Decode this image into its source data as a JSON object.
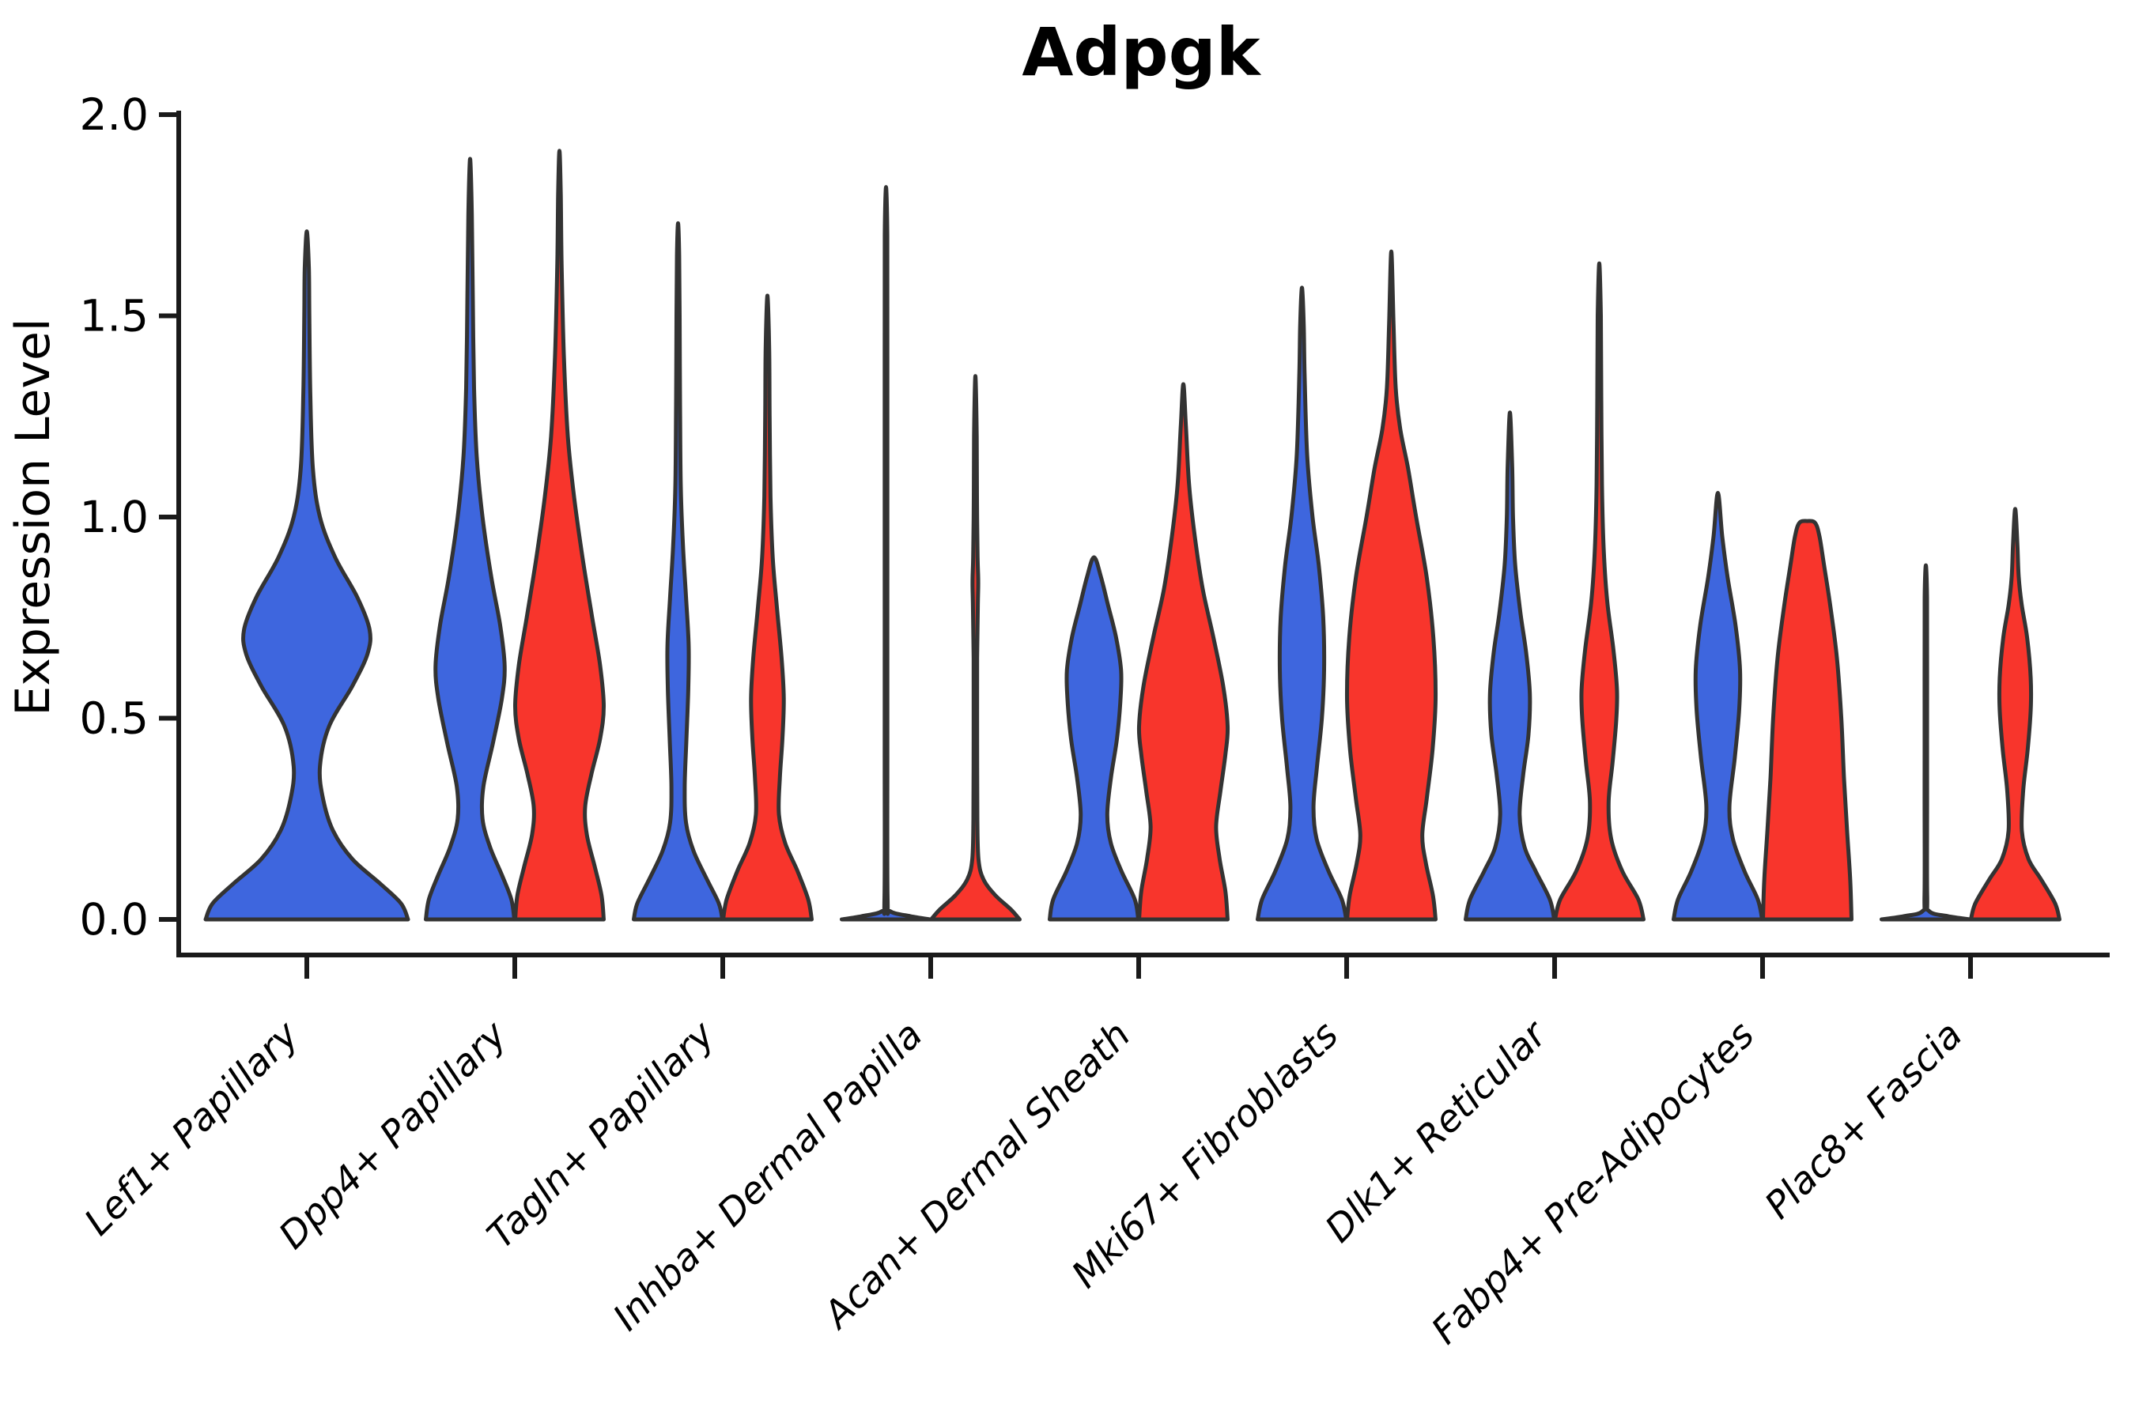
{
  "chart_data": {
    "type": "violin",
    "title": "Adpgk",
    "xlabel": "",
    "ylabel": "Expression Level",
    "ylim": [
      0.0,
      2.0
    ],
    "yticks": [
      0.0,
      0.5,
      1.0,
      1.5,
      2.0
    ],
    "ytick_labels": [
      "0.0",
      "0.5",
      "1.0",
      "1.5",
      "2.0"
    ],
    "grid": false,
    "legend_position": "none",
    "categories": [
      "Lef1+ Papillary",
      "Dpp4+ Papillary",
      "Tagln+ Papillary",
      "Inhba+ Dermal Papilla",
      "Acan+ Dermal Sheath",
      "Mki67+ Fibroblasts",
      "Dlk1+ Reticular",
      "Fabp4+ Pre-Adipocytes",
      "Plac8+ Fascia"
    ],
    "colors": {
      "blue": "#3E66DE",
      "red": "#F8352C",
      "outline": "#333333",
      "axis": "#1a1a1a",
      "text": "#000000",
      "background": "#ffffff"
    },
    "series": [
      {
        "name": "blue",
        "color": "#3E66DE",
        "max_expression": [
          1.71,
          1.89,
          1.73,
          1.82,
          0.9,
          1.57,
          1.26,
          1.06,
          0.88
        ]
      },
      {
        "name": "red",
        "color": "#F8352C",
        "max_expression": [
          null,
          1.91,
          1.55,
          1.35,
          1.33,
          1.66,
          1.63,
          0.99,
          1.02
        ]
      }
    ],
    "violins": [
      {
        "category_index": 0,
        "hue": "blue",
        "max": 1.71,
        "profile": [
          [
            0,
            1.0
          ],
          [
            0.04,
            0.93
          ],
          [
            0.09,
            0.72
          ],
          [
            0.15,
            0.45
          ],
          [
            0.22,
            0.26
          ],
          [
            0.3,
            0.16
          ],
          [
            0.38,
            0.13
          ],
          [
            0.48,
            0.22
          ],
          [
            0.58,
            0.45
          ],
          [
            0.66,
            0.6
          ],
          [
            0.72,
            0.62
          ],
          [
            0.8,
            0.5
          ],
          [
            0.9,
            0.28
          ],
          [
            1.0,
            0.13
          ],
          [
            1.12,
            0.06
          ],
          [
            1.3,
            0.035
          ],
          [
            1.5,
            0.025
          ],
          [
            1.62,
            0.02
          ],
          [
            1.71,
            0
          ]
        ]
      },
      {
        "category_index": 1,
        "hue": "blue",
        "max": 1.89,
        "profile": [
          [
            0,
            1.0
          ],
          [
            0.05,
            0.93
          ],
          [
            0.11,
            0.72
          ],
          [
            0.18,
            0.45
          ],
          [
            0.25,
            0.28
          ],
          [
            0.33,
            0.3
          ],
          [
            0.44,
            0.52
          ],
          [
            0.55,
            0.72
          ],
          [
            0.63,
            0.78
          ],
          [
            0.73,
            0.68
          ],
          [
            0.85,
            0.48
          ],
          [
            1.0,
            0.28
          ],
          [
            1.15,
            0.15
          ],
          [
            1.32,
            0.09
          ],
          [
            1.55,
            0.06
          ],
          [
            1.75,
            0.04
          ],
          [
            1.89,
            0
          ]
        ]
      },
      {
        "category_index": 1,
        "hue": "red",
        "max": 1.91,
        "profile": [
          [
            0,
            1.0
          ],
          [
            0.06,
            0.95
          ],
          [
            0.13,
            0.8
          ],
          [
            0.21,
            0.62
          ],
          [
            0.28,
            0.58
          ],
          [
            0.36,
            0.72
          ],
          [
            0.45,
            0.92
          ],
          [
            0.53,
            1.0
          ],
          [
            0.63,
            0.92
          ],
          [
            0.75,
            0.74
          ],
          [
            0.9,
            0.52
          ],
          [
            1.05,
            0.33
          ],
          [
            1.2,
            0.19
          ],
          [
            1.4,
            0.1
          ],
          [
            1.62,
            0.05
          ],
          [
            1.8,
            0.03
          ],
          [
            1.91,
            0
          ]
        ]
      },
      {
        "category_index": 2,
        "hue": "blue",
        "max": 1.73,
        "profile": [
          [
            0,
            1.0
          ],
          [
            0.04,
            0.92
          ],
          [
            0.1,
            0.65
          ],
          [
            0.17,
            0.35
          ],
          [
            0.24,
            0.18
          ],
          [
            0.33,
            0.15
          ],
          [
            0.45,
            0.19
          ],
          [
            0.57,
            0.23
          ],
          [
            0.68,
            0.24
          ],
          [
            0.8,
            0.18
          ],
          [
            0.93,
            0.11
          ],
          [
            1.08,
            0.06
          ],
          [
            1.28,
            0.045
          ],
          [
            1.5,
            0.035
          ],
          [
            1.65,
            0.025
          ],
          [
            1.73,
            0
          ]
        ]
      },
      {
        "category_index": 2,
        "hue": "red",
        "max": 1.55,
        "profile": [
          [
            0,
            1.0
          ],
          [
            0.05,
            0.92
          ],
          [
            0.12,
            0.68
          ],
          [
            0.19,
            0.4
          ],
          [
            0.26,
            0.26
          ],
          [
            0.35,
            0.28
          ],
          [
            0.45,
            0.34
          ],
          [
            0.55,
            0.37
          ],
          [
            0.65,
            0.32
          ],
          [
            0.78,
            0.21
          ],
          [
            0.9,
            0.12
          ],
          [
            1.05,
            0.07
          ],
          [
            1.25,
            0.05
          ],
          [
            1.42,
            0.04
          ],
          [
            1.55,
            0
          ]
        ]
      },
      {
        "category_index": 3,
        "hue": "blue",
        "max": 1.82,
        "profile": [
          [
            0,
            1.0
          ],
          [
            0.008,
            0.55
          ],
          [
            0.02,
            0.1
          ],
          [
            0.05,
            0.035
          ],
          [
            0.4,
            0.03
          ],
          [
            0.9,
            0.03
          ],
          [
            1.4,
            0.03
          ],
          [
            1.7,
            0.028
          ],
          [
            1.82,
            0
          ]
        ]
      },
      {
        "category_index": 3,
        "hue": "red",
        "max": 1.35,
        "profile": [
          [
            0,
            1.0
          ],
          [
            0.025,
            0.8
          ],
          [
            0.06,
            0.45
          ],
          [
            0.1,
            0.18
          ],
          [
            0.15,
            0.07
          ],
          [
            0.25,
            0.045
          ],
          [
            0.45,
            0.04
          ],
          [
            0.65,
            0.04
          ],
          [
            0.78,
            0.055
          ],
          [
            0.84,
            0.065
          ],
          [
            0.9,
            0.05
          ],
          [
            1.05,
            0.035
          ],
          [
            1.2,
            0.03
          ],
          [
            1.35,
            0
          ]
        ]
      },
      {
        "category_index": 4,
        "hue": "blue",
        "max": 0.9,
        "profile": [
          [
            0,
            1.0
          ],
          [
            0.05,
            0.92
          ],
          [
            0.12,
            0.62
          ],
          [
            0.19,
            0.38
          ],
          [
            0.26,
            0.3
          ],
          [
            0.35,
            0.38
          ],
          [
            0.45,
            0.52
          ],
          [
            0.55,
            0.6
          ],
          [
            0.62,
            0.61
          ],
          [
            0.7,
            0.5
          ],
          [
            0.78,
            0.32
          ],
          [
            0.85,
            0.16
          ],
          [
            0.9,
            0
          ]
        ]
      },
      {
        "category_index": 4,
        "hue": "red",
        "max": 1.33,
        "profile": [
          [
            0,
            1.0
          ],
          [
            0.07,
            0.95
          ],
          [
            0.15,
            0.82
          ],
          [
            0.23,
            0.74
          ],
          [
            0.32,
            0.84
          ],
          [
            0.41,
            0.95
          ],
          [
            0.48,
            1.0
          ],
          [
            0.58,
            0.9
          ],
          [
            0.7,
            0.68
          ],
          [
            0.82,
            0.44
          ],
          [
            0.95,
            0.26
          ],
          [
            1.08,
            0.13
          ],
          [
            1.22,
            0.06
          ],
          [
            1.33,
            0
          ]
        ]
      },
      {
        "category_index": 5,
        "hue": "blue",
        "max": 1.57,
        "profile": [
          [
            0,
            1.0
          ],
          [
            0.05,
            0.9
          ],
          [
            0.12,
            0.6
          ],
          [
            0.2,
            0.33
          ],
          [
            0.28,
            0.26
          ],
          [
            0.38,
            0.34
          ],
          [
            0.5,
            0.45
          ],
          [
            0.62,
            0.5
          ],
          [
            0.75,
            0.48
          ],
          [
            0.88,
            0.38
          ],
          [
            1.0,
            0.24
          ],
          [
            1.15,
            0.12
          ],
          [
            1.35,
            0.06
          ],
          [
            1.48,
            0.04
          ],
          [
            1.57,
            0
          ]
        ]
      },
      {
        "category_index": 5,
        "hue": "red",
        "max": 1.66,
        "profile": [
          [
            0,
            1.0
          ],
          [
            0.06,
            0.94
          ],
          [
            0.14,
            0.78
          ],
          [
            0.21,
            0.7
          ],
          [
            0.3,
            0.8
          ],
          [
            0.42,
            0.93
          ],
          [
            0.55,
            1.0
          ],
          [
            0.7,
            0.95
          ],
          [
            0.85,
            0.8
          ],
          [
            1.0,
            0.56
          ],
          [
            1.12,
            0.38
          ],
          [
            1.22,
            0.2
          ],
          [
            1.32,
            0.1
          ],
          [
            1.48,
            0.05
          ],
          [
            1.66,
            0
          ]
        ]
      },
      {
        "category_index": 6,
        "hue": "blue",
        "max": 1.26,
        "profile": [
          [
            0,
            1.0
          ],
          [
            0.05,
            0.9
          ],
          [
            0.12,
            0.58
          ],
          [
            0.18,
            0.33
          ],
          [
            0.26,
            0.22
          ],
          [
            0.36,
            0.3
          ],
          [
            0.46,
            0.42
          ],
          [
            0.56,
            0.45
          ],
          [
            0.66,
            0.37
          ],
          [
            0.76,
            0.24
          ],
          [
            0.88,
            0.12
          ],
          [
            1.0,
            0.07
          ],
          [
            1.13,
            0.05
          ],
          [
            1.26,
            0
          ]
        ]
      },
      {
        "category_index": 6,
        "hue": "red",
        "max": 1.63,
        "profile": [
          [
            0,
            1.0
          ],
          [
            0.05,
            0.88
          ],
          [
            0.12,
            0.52
          ],
          [
            0.2,
            0.27
          ],
          [
            0.29,
            0.21
          ],
          [
            0.39,
            0.3
          ],
          [
            0.49,
            0.38
          ],
          [
            0.57,
            0.4
          ],
          [
            0.67,
            0.32
          ],
          [
            0.79,
            0.18
          ],
          [
            0.92,
            0.1
          ],
          [
            1.08,
            0.06
          ],
          [
            1.3,
            0.045
          ],
          [
            1.5,
            0.035
          ],
          [
            1.63,
            0
          ]
        ]
      },
      {
        "category_index": 7,
        "hue": "blue",
        "max": 1.06,
        "profile": [
          [
            0,
            1.0
          ],
          [
            0.05,
            0.9
          ],
          [
            0.12,
            0.6
          ],
          [
            0.2,
            0.34
          ],
          [
            0.28,
            0.26
          ],
          [
            0.4,
            0.38
          ],
          [
            0.52,
            0.48
          ],
          [
            0.62,
            0.5
          ],
          [
            0.73,
            0.4
          ],
          [
            0.85,
            0.22
          ],
          [
            0.95,
            0.1
          ],
          [
            1.06,
            0
          ]
        ]
      },
      {
        "category_index": 7,
        "hue": "red",
        "max": 0.99,
        "profile": [
          [
            0,
            1.0
          ],
          [
            0.1,
            0.97
          ],
          [
            0.22,
            0.9
          ],
          [
            0.35,
            0.83
          ],
          [
            0.5,
            0.77
          ],
          [
            0.65,
            0.67
          ],
          [
            0.78,
            0.52
          ],
          [
            0.88,
            0.38
          ],
          [
            0.95,
            0.28
          ],
          [
            0.985,
            0.18
          ],
          [
            0.99,
            0
          ]
        ]
      },
      {
        "category_index": 8,
        "hue": "blue",
        "max": 0.88,
        "profile": [
          [
            0,
            1.0
          ],
          [
            0.008,
            0.5
          ],
          [
            0.02,
            0.08
          ],
          [
            0.06,
            0.03
          ],
          [
            0.3,
            0.028
          ],
          [
            0.6,
            0.028
          ],
          [
            0.8,
            0.026
          ],
          [
            0.88,
            0
          ]
        ]
      },
      {
        "category_index": 8,
        "hue": "red",
        "max": 1.02,
        "profile": [
          [
            0,
            1.0
          ],
          [
            0.04,
            0.9
          ],
          [
            0.1,
            0.58
          ],
          [
            0.15,
            0.3
          ],
          [
            0.22,
            0.15
          ],
          [
            0.32,
            0.18
          ],
          [
            0.42,
            0.28
          ],
          [
            0.52,
            0.35
          ],
          [
            0.6,
            0.35
          ],
          [
            0.7,
            0.27
          ],
          [
            0.78,
            0.15
          ],
          [
            0.85,
            0.08
          ],
          [
            0.93,
            0.05
          ],
          [
            1.02,
            0
          ]
        ]
      }
    ]
  }
}
